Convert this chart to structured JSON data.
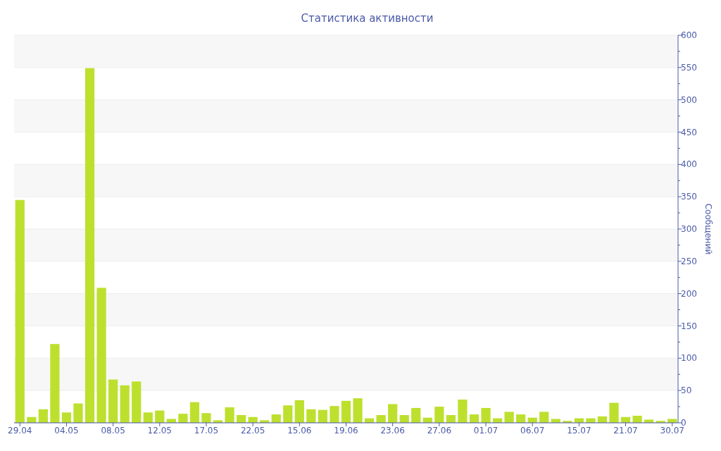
{
  "chart_data": {
    "type": "bar",
    "title": "Статистика активности",
    "ylabel": "Сообщений",
    "categories": [
      "29.04",
      null,
      null,
      null,
      "04.05",
      null,
      null,
      null,
      "08.05",
      null,
      null,
      null,
      "12.05",
      null,
      null,
      null,
      "17.05",
      null,
      null,
      null,
      "22.05",
      null,
      null,
      null,
      "15.06",
      null,
      null,
      null,
      "19.06",
      null,
      null,
      null,
      "23.06",
      null,
      null,
      null,
      "27.06",
      null,
      null,
      null,
      "01.07",
      null,
      null,
      null,
      "06.07",
      null,
      null,
      null,
      "15.07",
      null,
      null,
      null,
      "21.07",
      null,
      null,
      null,
      "30.07"
    ],
    "values": [
      345,
      9,
      21,
      122,
      16,
      30,
      549,
      209,
      67,
      58,
      64,
      16,
      19,
      6,
      14,
      32,
      15,
      4,
      24,
      12,
      9,
      4,
      13,
      27,
      35,
      21,
      20,
      26,
      34,
      38,
      7,
      12,
      29,
      12,
      23,
      8,
      25,
      12,
      36,
      13,
      23,
      7,
      17,
      13,
      8,
      17,
      6,
      3,
      7,
      7,
      10,
      31,
      9,
      11,
      5,
      3,
      6
    ],
    "color": "#bde02e",
    "ylim": [
      0,
      600
    ],
    "yticks": [
      0,
      {
        "value": 25,
        "label": null
      },
      50,
      {
        "value": 75,
        "label": null
      },
      100,
      {
        "value": 125,
        "label": null
      },
      150,
      {
        "value": 175,
        "label": null
      },
      200,
      {
        "value": 225,
        "label": null
      },
      250,
      {
        "value": 275,
        "label": null
      },
      300,
      {
        "value": 325,
        "label": null
      },
      350,
      {
        "value": 375,
        "label": null
      },
      400,
      {
        "value": 425,
        "label": null
      },
      450,
      {
        "value": 475,
        "label": null
      },
      500,
      {
        "value": 525,
        "label": null
      },
      550,
      {
        "value": 575,
        "label": null
      },
      600
    ],
    "grid": true
  }
}
